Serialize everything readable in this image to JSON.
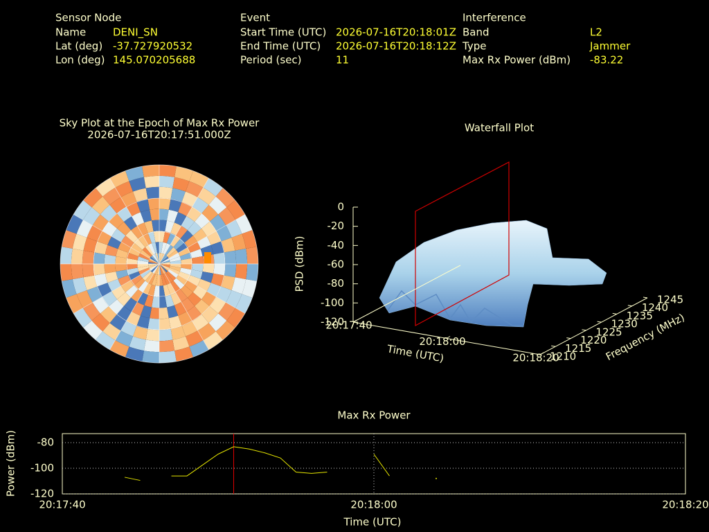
{
  "header": {
    "sensor": {
      "title": "Sensor Node",
      "rows": [
        [
          "Name",
          "DENI_SN"
        ],
        [
          "Lat (deg)",
          -37.727920532
        ],
        [
          "Lon (deg)",
          145.070205688
        ]
      ]
    },
    "event": {
      "title": "Event",
      "rows": [
        [
          "Start Time (UTC)",
          "2026-07-16T20:18:01Z"
        ],
        [
          "End Time (UTC)",
          "2026-07-16T20:18:12Z"
        ],
        [
          "Period (sec)",
          11
        ]
      ]
    },
    "interference": {
      "title": "Interference",
      "rows": [
        [
          "Band",
          "L2"
        ],
        [
          "Type",
          "Jammer"
        ],
        [
          "Max Rx Power (dBm)",
          -83.22
        ]
      ]
    }
  },
  "chart_data": [
    {
      "type": "skyplot",
      "title": "Sky Plot at the Epoch of Max Rx Power",
      "subtitle": "2026-07-16T20:17:51.000Z"
    },
    {
      "type": "surface",
      "title": "Waterfall Plot",
      "xlabel": "Time (UTC)",
      "ylabel": "Frequency (MHz)",
      "zlabel": "PSD (dBm)",
      "xlim": [
        "20:17:40",
        "20:18:20"
      ],
      "xticks": [
        "20:17:40",
        "20:18:00",
        "20:18:20"
      ],
      "ylim": [
        1210,
        1245
      ],
      "yticks": [
        1210,
        1215,
        1220,
        1225,
        1230,
        1235,
        1240,
        1245
      ],
      "zlim": [
        -120,
        0
      ],
      "zticks": [
        0,
        -20,
        -40,
        -60,
        -80,
        -100,
        -120
      ]
    },
    {
      "type": "line",
      "title": "Max Rx Power",
      "xlabel": "Time (UTC)",
      "ylabel": "Power (dBm)",
      "x": [
        "20:17:44",
        "20:17:45",
        "20:17:46",
        "20:17:47",
        "20:17:48",
        "20:17:50",
        "20:17:51",
        "20:17:52",
        "20:17:53",
        "20:17:54",
        "20:17:55",
        "20:17:56",
        "20:17:57",
        "20:17:58",
        "20:18:00",
        "20:18:01",
        "20:18:02",
        "20:18:04"
      ],
      "values": [
        -107,
        -109.5,
        null,
        -106,
        -106,
        -89,
        -83.22,
        -85,
        -88,
        -92,
        -103,
        -104,
        -103,
        null,
        -89,
        -106,
        null,
        -108
      ],
      "color": "#e6e600",
      "marker_x": "20:17:51",
      "marker_color": "#e00000",
      "xlim": [
        "20:17:40",
        "20:18:20"
      ],
      "xticks": [
        "20:17:40",
        "20:18:00",
        "20:18:20"
      ],
      "ylim": [
        -120,
        -73
      ],
      "yticks": [
        -80,
        -100,
        -120
      ],
      "grid": true
    }
  ]
}
